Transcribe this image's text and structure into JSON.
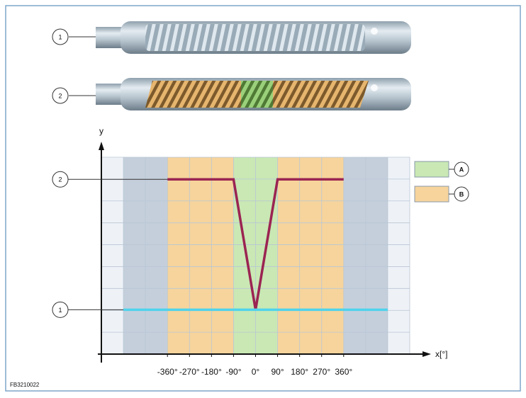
{
  "shafts": [
    {
      "label": "1"
    },
    {
      "label": "2"
    }
  ],
  "figure_id": "FB3210022",
  "chart_data": {
    "type": "line",
    "y_label": "y",
    "x_label": "x[°]",
    "xlim": [
      -630,
      630
    ],
    "ylim": [
      0.66,
      2.17
    ],
    "xticks": [
      {
        "value": -360,
        "label": "-360°"
      },
      {
        "value": -270,
        "label": "-270°"
      },
      {
        "value": -180,
        "label": "-180°"
      },
      {
        "value": -90,
        "label": "-90°"
      },
      {
        "value": 0,
        "label": "0°"
      },
      {
        "value": 90,
        "label": "90°"
      },
      {
        "value": 180,
        "label": "180°"
      },
      {
        "value": 270,
        "label": "270°"
      },
      {
        "value": 360,
        "label": "360°"
      }
    ],
    "yticks": [
      1,
      2
    ],
    "shaded": {
      "color": "#c5cfdc",
      "spans": [
        [
          -540,
          -360
        ],
        [
          360,
          540
        ]
      ]
    },
    "regions": [
      {
        "name": "A",
        "color": "#c9e8b4",
        "spans": [
          [
            -90,
            90
          ]
        ]
      },
      {
        "name": "B",
        "color": "#f6d49c",
        "spans": [
          [
            -360,
            -90
          ],
          [
            90,
            360
          ]
        ]
      }
    ],
    "series": [
      {
        "color": "#9b2452",
        "x": [
          -360,
          -90,
          0,
          90,
          360
        ],
        "values": [
          2,
          2,
          1,
          2,
          2
        ]
      },
      {
        "color": "#4fd3ec",
        "x": [
          -540,
          540
        ],
        "values": [
          1,
          1
        ]
      }
    ]
  }
}
